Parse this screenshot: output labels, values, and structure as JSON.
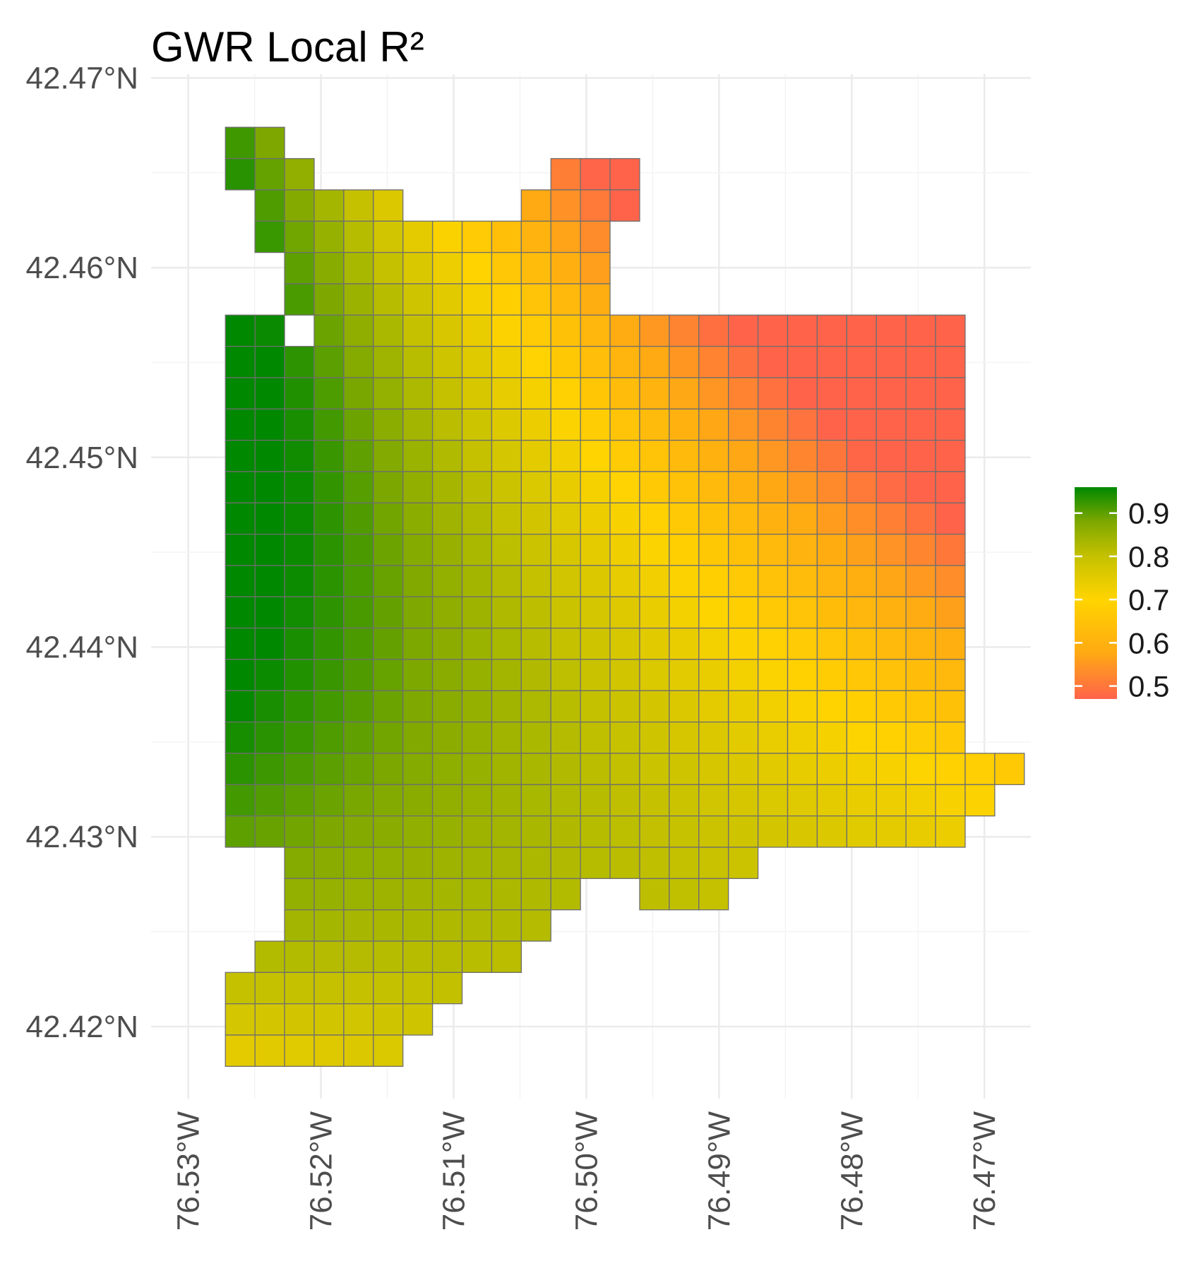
{
  "chart_data": {
    "type": "heatmap",
    "title": "GWR Local R²",
    "xlabel": "",
    "ylabel": "",
    "grid": true,
    "legend_position": "right",
    "x_ticks": [
      {
        "value": -76.53,
        "label": "76.53°W"
      },
      {
        "value": -76.52,
        "label": "76.52°W"
      },
      {
        "value": -76.51,
        "label": "76.51°W"
      },
      {
        "value": -76.5,
        "label": "76.50°W"
      },
      {
        "value": -76.49,
        "label": "76.49°W"
      },
      {
        "value": -76.48,
        "label": "76.48°W"
      },
      {
        "value": -76.47,
        "label": "76.47°W"
      }
    ],
    "y_ticks": [
      {
        "value": 42.47,
        "label": "42.47°N"
      },
      {
        "value": 42.46,
        "label": "42.46°N"
      },
      {
        "value": 42.45,
        "label": "42.45°N"
      },
      {
        "value": 42.44,
        "label": "42.44°N"
      },
      {
        "value": 42.43,
        "label": "42.43°N"
      },
      {
        "value": 42.42,
        "label": "42.42°N"
      }
    ],
    "xlim": [
      -76.5328,
      -76.4665
    ],
    "ylim": [
      42.4162,
      42.4702
    ],
    "grid_origin": {
      "lon": -76.5272,
      "lat": 42.4674
    },
    "cell_size_deg": {
      "lon": 0.00223,
      "lat": 0.00165
    },
    "color_scale": {
      "stops": [
        {
          "value": 0.47,
          "color": "#ff634a"
        },
        {
          "value": 0.58,
          "color": "#ffab12"
        },
        {
          "value": 0.7,
          "color": "#ffd400"
        },
        {
          "value": 0.8,
          "color": "#c5c100"
        },
        {
          "value": 0.88,
          "color": "#7ea800"
        },
        {
          "value": 0.96,
          "color": "#008800"
        }
      ],
      "ticks": [
        0.5,
        0.6,
        0.7,
        0.8,
        0.9
      ],
      "tick_labels": [
        "0.5",
        "0.6",
        "0.7",
        "0.8",
        "0.9"
      ],
      "range": [
        0.47,
        0.96
      ]
    },
    "rows": [
      {
        "cols": [
          [
            0,
            1
          ]
        ]
      },
      {
        "cols": [
          [
            0,
            2
          ],
          [
            11,
            13
          ]
        ]
      },
      {
        "cols": [
          [
            1,
            2
          ],
          [
            3,
            5
          ],
          [
            10,
            13
          ]
        ]
      },
      {
        "cols": [
          [
            1,
            12
          ]
        ]
      },
      {
        "cols": [
          [
            2,
            12
          ]
        ]
      },
      {
        "cols": [
          [
            2,
            12
          ]
        ]
      },
      {
        "cols": [
          [
            0,
            1
          ],
          [
            3,
            24
          ]
        ]
      },
      {
        "cols": [
          [
            0,
            24
          ]
        ]
      },
      {
        "cols": [
          [
            0,
            24
          ]
        ]
      },
      {
        "cols": [
          [
            0,
            24
          ]
        ]
      },
      {
        "cols": [
          [
            0,
            24
          ]
        ]
      },
      {
        "cols": [
          [
            0,
            24
          ]
        ]
      },
      {
        "cols": [
          [
            0,
            24
          ]
        ]
      },
      {
        "cols": [
          [
            0,
            24
          ]
        ]
      },
      {
        "cols": [
          [
            0,
            24
          ]
        ]
      },
      {
        "cols": [
          [
            0,
            24
          ]
        ]
      },
      {
        "cols": [
          [
            0,
            24
          ]
        ]
      },
      {
        "cols": [
          [
            0,
            24
          ]
        ]
      },
      {
        "cols": [
          [
            0,
            24
          ]
        ]
      },
      {
        "cols": [
          [
            0,
            24
          ]
        ]
      },
      {
        "cols": [
          [
            0,
            26
          ]
        ]
      },
      {
        "cols": [
          [
            0,
            25
          ]
        ]
      },
      {
        "cols": [
          [
            0,
            24
          ]
        ]
      },
      {
        "cols": [
          [
            2,
            12
          ],
          [
            13,
            17
          ]
        ]
      },
      {
        "cols": [
          [
            2,
            11
          ],
          [
            14,
            16
          ]
        ]
      },
      {
        "cols": [
          [
            2,
            10
          ]
        ]
      },
      {
        "cols": [
          [
            1,
            9
          ]
        ]
      },
      {
        "cols": [
          [
            0,
            7
          ]
        ]
      },
      {
        "cols": [
          [
            0,
            6
          ]
        ]
      },
      {
        "cols": [
          [
            0,
            5
          ]
        ]
      }
    ]
  }
}
